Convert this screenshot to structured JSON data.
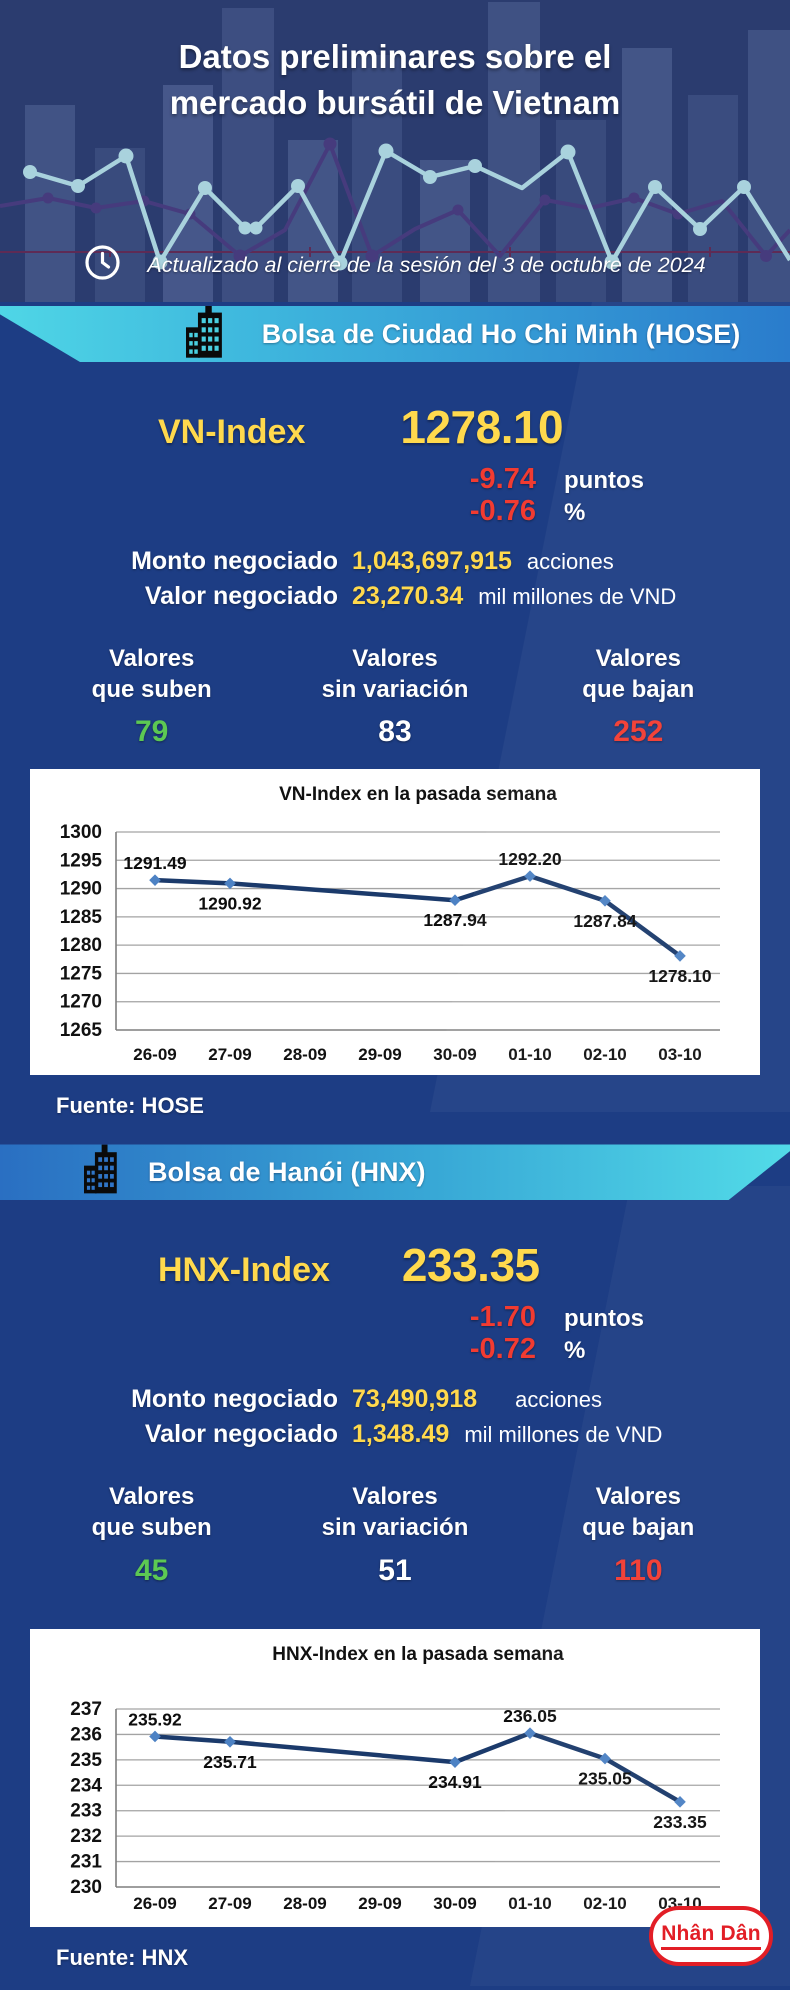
{
  "header": {
    "title_line1": "Datos preliminares sobre el",
    "title_line2": "mercado bursátil de Vietnam",
    "updated_text": "Actualizado al cierre de la sesión del 3 de octubre de 2024"
  },
  "hose": {
    "banner_label": "Bolsa de Ciudad Ho Chi Minh (HOSE)",
    "index_label": "VN-Index",
    "index_value": "1278.10",
    "change_points": {
      "value": "-9.74",
      "unit": "puntos"
    },
    "change_percent": {
      "value": "-0.76",
      "unit": "%"
    },
    "volume": {
      "label": "Monto negociado",
      "value": "1,043,697,915",
      "unit": "acciones"
    },
    "turnover": {
      "label": "Valor negociado",
      "value": "23,270.34",
      "unit": "mil millones de VND"
    },
    "breadth": {
      "up": {
        "line1": "Valores",
        "line2": "que suben",
        "value": "79",
        "color": "#5cc853"
      },
      "flat": {
        "line1": "Valores",
        "line2": "sin variación",
        "value": "83",
        "color": "#ffffff"
      },
      "down": {
        "line1": "Valores",
        "line2": "que bajan",
        "value": "252",
        "color": "#f23b31"
      }
    },
    "source": "Fuente: HOSE"
  },
  "hnx": {
    "banner_label": "Bolsa de Hanói (HNX)",
    "index_label": "HNX-Index",
    "index_value": "233.35",
    "change_points": {
      "value": "-1.70",
      "unit": "puntos"
    },
    "change_percent": {
      "value": "-0.72",
      "unit": "%"
    },
    "volume": {
      "label": "Monto negociado",
      "value": "73,490,918",
      "unit": "acciones"
    },
    "turnover": {
      "label": "Valor negociado",
      "value": "1,348.49",
      "unit": "mil millones de VND"
    },
    "breadth": {
      "up": {
        "line1": "Valores",
        "line2": "que suben",
        "value": "45",
        "color": "#5cc853"
      },
      "flat": {
        "line1": "Valores",
        "line2": "sin variación",
        "value": "51",
        "color": "#ffffff"
      },
      "down": {
        "line1": "Valores",
        "line2": "que bajan",
        "value": "110",
        "color": "#f23b31"
      }
    },
    "source": "Fuente:  HNX"
  },
  "chart_data": [
    {
      "type": "line",
      "title": "VN-Index en la pasada semana",
      "x": [
        "26-09",
        "27-09",
        "28-09",
        "29-09",
        "30-09",
        "01-10",
        "02-10",
        "03-10"
      ],
      "values": [
        1291.49,
        1290.92,
        null,
        null,
        1287.94,
        1292.2,
        1287.84,
        1278.1
      ],
      "value_labels": [
        "1291.49",
        "1290.92",
        null,
        null,
        "1287.94",
        "1292.20",
        "1287.84",
        "1278.10"
      ],
      "label_pos": [
        "above",
        "below",
        null,
        null,
        "below",
        "above",
        "below",
        "below"
      ],
      "ylim": [
        1265,
        1300
      ],
      "ytick_step": 5,
      "grid": true,
      "legend": "none",
      "line_color": "#1b3a6b",
      "marker_color": "#4d82c4"
    },
    {
      "type": "line",
      "title": "HNX-Index en la pasada semana",
      "x": [
        "26-09",
        "27-09",
        "28-09",
        "29-09",
        "30-09",
        "01-10",
        "02-10",
        "03-10"
      ],
      "values": [
        235.92,
        235.71,
        null,
        null,
        234.91,
        236.05,
        235.05,
        233.35
      ],
      "value_labels": [
        "235.92",
        "235.71",
        null,
        null,
        "234.91",
        "236.05",
        "235.05",
        "233.35"
      ],
      "label_pos": [
        "above",
        "below",
        null,
        null,
        "below",
        "above",
        "below",
        "below"
      ],
      "ylim": [
        230,
        237
      ],
      "ytick_step": 1,
      "grid": true,
      "legend": "none",
      "line_color": "#1b3a6b",
      "marker_color": "#4d82c4"
    }
  ],
  "footer": {
    "logo_text": "Nhân Dân",
    "logo_color": "#e21e26"
  },
  "colors": {
    "page_bg": "#1d3d84",
    "header_bg": "#2b3c6f",
    "accent_yellow": "#ffd94d",
    "negative_red": "#f23b31",
    "positive_green": "#5cc853",
    "banner_cyan": "#4fd6e6",
    "banner_blue": "#2a7ccc",
    "chart_line": "#1b3a6b",
    "chart_marker": "#4d82c4"
  }
}
